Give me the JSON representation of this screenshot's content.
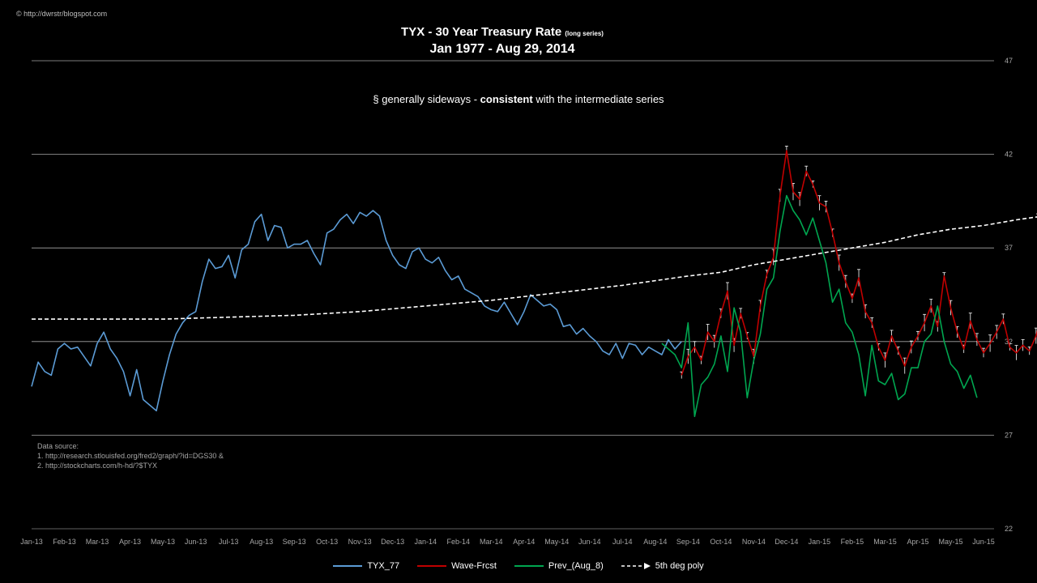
{
  "credit": "© http://dwrstr/blogspot.com",
  "title_main": "TYX - 30 Year  Treasury Rate",
  "title_small": "(long series)",
  "subtitle": "Jan 1977 -  Aug 29, 2014",
  "annotation_prefix": "§ generally sideways -",
  "annotation_bold": "consistent",
  "annotation_suffix": "with the intermediate series",
  "source_lines": [
    "Data source:",
    "1. http://research.stlouisfed.org/fred2/graph/?id=DGS30  &",
    "2. http://stockcharts.com/h-hd/?$TYX"
  ],
  "legend": [
    {
      "name": "TYX_77",
      "color": "#5b9bd5",
      "style": "solid"
    },
    {
      "name": "Wave-Frcst",
      "color": "#c00000",
      "style": "solid"
    },
    {
      "name": "Prev_(Aug_8)",
      "color": "#00a650",
      "style": "solid"
    },
    {
      "name": "5th deg poly",
      "color": "#ffffff",
      "style": "dashed-arrow"
    }
  ],
  "chart_data": {
    "type": "line",
    "title": "TYX - 30 Year  Treasury Rate (long series)",
    "subtitle": "Jan 1977 -  Aug 29, 2014",
    "ylim": [
      22,
      47
    ],
    "yticks": [
      22,
      27,
      32,
      37,
      42,
      47
    ],
    "y_axis_side": "right",
    "grid": true,
    "legend_position": "bottom",
    "xticks": [
      "Jan-13",
      "Feb-13",
      "Mar-13",
      "Apr-13",
      "May-13",
      "Jun-13",
      "Jul-13",
      "Aug-13",
      "Sep-13",
      "Oct-13",
      "Nov-13",
      "Dec-13",
      "Jan-14",
      "Feb-14",
      "Mar-14",
      "Apr-14",
      "May-14",
      "Jun-14",
      "Jul-14",
      "Aug-14",
      "Sep-14",
      "Oct-14",
      "Nov-14",
      "Dec-14",
      "Jan-15",
      "Feb-15",
      "Mar-15",
      "Apr-15",
      "May-15",
      "Jun-15"
    ],
    "series": [
      {
        "name": "TYX_77",
        "color": "#5b9bd5",
        "x": [
          0,
          0.2,
          0.4,
          0.6,
          0.8,
          1.0,
          1.2,
          1.4,
          1.6,
          1.8,
          2.0,
          2.2,
          2.4,
          2.6,
          2.8,
          3.0,
          3.2,
          3.4,
          3.6,
          3.8,
          4.0,
          4.2,
          4.4,
          4.6,
          4.8,
          5.0,
          5.2,
          5.4,
          5.6,
          5.8,
          6.0,
          6.2,
          6.4,
          6.6,
          6.8,
          7.0,
          7.2,
          7.4,
          7.6,
          7.8,
          8.0,
          8.2,
          8.4,
          8.6,
          8.8,
          9.0,
          9.2,
          9.4,
          9.6,
          9.8,
          10.0,
          10.2,
          10.4,
          10.6,
          10.8,
          11.0,
          11.2,
          11.4,
          11.6,
          11.8,
          12.0,
          12.2,
          12.4,
          12.6,
          12.8,
          13.0,
          13.2,
          13.4,
          13.6,
          13.8,
          14.0,
          14.2,
          14.4,
          14.6,
          14.8,
          15.0,
          15.2,
          15.4,
          15.6,
          15.8,
          16.0,
          16.2,
          16.4,
          16.6,
          16.8,
          17.0,
          17.2,
          17.4,
          17.6,
          17.8,
          18.0,
          18.2,
          18.4,
          18.6,
          18.8,
          19.0,
          19.2,
          19.4,
          19.6,
          19.8
        ],
        "values": [
          29.6,
          30.9,
          30.4,
          30.2,
          31.6,
          31.9,
          31.6,
          31.7,
          31.2,
          30.7,
          31.9,
          32.5,
          31.6,
          31.1,
          30.4,
          29.1,
          30.5,
          28.9,
          28.6,
          28.3,
          29.9,
          31.3,
          32.4,
          33.0,
          33.4,
          33.6,
          35.2,
          36.4,
          35.9,
          36.0,
          36.6,
          35.4,
          36.9,
          37.2,
          38.4,
          38.8,
          37.4,
          38.2,
          38.1,
          37.0,
          37.2,
          37.2,
          37.4,
          36.7,
          36.1,
          37.8,
          38.0,
          38.5,
          38.8,
          38.3,
          38.9,
          38.7,
          39.0,
          38.7,
          37.4,
          36.6,
          36.1,
          35.9,
          36.8,
          37.0,
          36.4,
          36.2,
          36.5,
          35.8,
          35.3,
          35.5,
          34.8,
          34.6,
          34.4,
          33.9,
          33.7,
          33.6,
          34.1,
          33.5,
          32.9,
          33.6,
          34.5,
          34.2,
          33.9,
          34.0,
          33.7,
          32.8,
          32.9,
          32.4,
          32.7,
          32.3,
          32.0,
          31.5,
          31.3,
          31.9,
          31.1,
          31.9,
          31.8,
          31.3,
          31.7,
          31.5,
          31.3,
          32.1,
          31.6,
          32.0
        ]
      },
      {
        "name": "Wave-Frcst",
        "color": "#c00000",
        "x": [
          19.8,
          20.0,
          20.2,
          20.4,
          20.6,
          20.8,
          21.0,
          21.2,
          21.4,
          21.6,
          21.8,
          22.0,
          22.2,
          22.4,
          22.6,
          22.8,
          23.0,
          23.2,
          23.4,
          23.6,
          23.8,
          24.0,
          24.2,
          24.4,
          24.6,
          24.8,
          25.0,
          25.2,
          25.4,
          25.6,
          25.8,
          26.0,
          26.2,
          26.4,
          26.6,
          26.8,
          27.0,
          27.2,
          27.4,
          27.6,
          27.8,
          28.0,
          28.2,
          28.4,
          28.6,
          28.8,
          29.0,
          29.2,
          29.4,
          29.6,
          29.8,
          30.0,
          30.2,
          30.4,
          30.6,
          30.8
        ],
        "values": [
          30.2,
          31.2,
          31.7,
          31.0,
          32.5,
          32.0,
          33.5,
          34.7,
          31.8,
          33.5,
          32.3,
          31.2,
          33.9,
          35.6,
          36.5,
          39.8,
          42.2,
          40.0,
          39.6,
          41.1,
          40.4,
          39.4,
          39.2,
          37.8,
          36.2,
          35.2,
          34.3,
          35.4,
          33.6,
          33.0,
          31.7,
          31.0,
          32.3,
          31.5,
          30.7,
          31.7,
          32.3,
          33.0,
          33.9,
          32.8,
          35.5,
          33.8,
          32.5,
          31.6,
          33.1,
          32.1,
          31.4,
          31.9,
          32.5,
          33.2,
          31.7,
          31.4,
          31.8,
          31.5,
          32.3,
          33.6
        ]
      },
      {
        "name": "Prev_(Aug_8)",
        "color": "#00a650",
        "x": [
          19.2,
          19.4,
          19.6,
          19.8,
          20.0,
          20.2,
          20.4,
          20.6,
          20.8,
          21.0,
          21.2,
          21.4,
          21.6,
          21.8,
          22.0,
          22.2,
          22.4,
          22.6,
          22.8,
          23.0,
          23.2,
          23.4,
          23.6,
          23.8,
          24.0,
          24.2,
          24.4,
          24.6,
          24.8,
          25.0,
          25.2,
          25.4,
          25.6,
          25.8,
          26.0,
          26.2,
          26.4,
          26.6,
          26.8,
          27.0,
          27.2,
          27.4,
          27.6,
          27.8,
          28.0,
          28.2,
          28.4,
          28.6,
          28.8
        ],
        "values": [
          31.9,
          31.6,
          31.3,
          30.6,
          33.0,
          28.0,
          29.7,
          30.1,
          30.8,
          32.3,
          30.4,
          33.8,
          32.5,
          29.0,
          31.0,
          32.4,
          34.8,
          35.4,
          37.9,
          39.8,
          39.0,
          38.5,
          37.7,
          38.6,
          37.4,
          36.2,
          34.1,
          34.8,
          33.0,
          32.5,
          31.3,
          29.1,
          31.8,
          29.9,
          29.7,
          30.3,
          28.9,
          29.2,
          30.6,
          30.6,
          32.0,
          32.4,
          33.9,
          32.0,
          30.8,
          30.4,
          29.5,
          30.2,
          29.0
        ]
      },
      {
        "name": "5th deg poly",
        "color": "#ffffff",
        "style": "dashed",
        "x": [
          0,
          2,
          4,
          6,
          8,
          10,
          12,
          14,
          16,
          18,
          20,
          21,
          22,
          23,
          24,
          25,
          26,
          27,
          28,
          29,
          30,
          30.8
        ],
        "values": [
          33.2,
          33.2,
          33.2,
          33.3,
          33.4,
          33.6,
          33.9,
          34.2,
          34.6,
          35.0,
          35.5,
          35.7,
          36.1,
          36.4,
          36.7,
          37.0,
          37.3,
          37.7,
          38.0,
          38.2,
          38.5,
          38.7
        ]
      }
    ]
  }
}
